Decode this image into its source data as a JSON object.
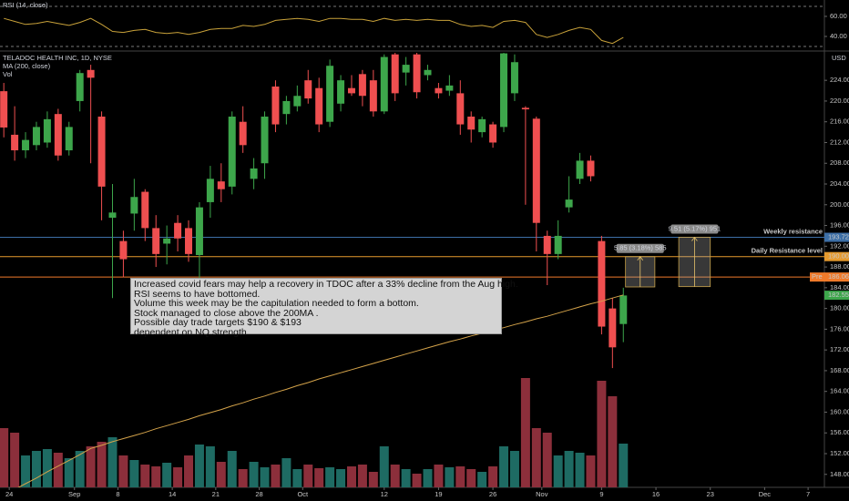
{
  "chart_data": {
    "type": "candlestick",
    "title": "TELADOC HEALTH INC, 1D, NYSE",
    "currency": "USD",
    "up_color": "#3da64b",
    "down_color": "#ef4f50",
    "open": [
      221.9,
      213.5,
      210.5,
      211.5,
      212,
      217.5,
      210.5,
      220,
      226,
      217,
      197.5,
      193,
      198.3,
      202.5,
      195.5,
      192.5,
      196.5,
      195.5,
      190.3,
      200.5,
      204.5,
      203.5,
      216,
      205,
      208,
      222.8,
      217.5,
      219,
      224,
      222.5,
      216,
      219.5,
      222.5,
      225.2,
      224,
      218,
      229,
      225.5,
      229,
      225,
      222.5,
      222,
      221.5,
      217,
      214,
      215.5,
      215,
      221.5,
      218.7,
      216.6,
      194,
      190.5,
      199.5,
      205,
      208.5,
      193,
      180,
      177
    ],
    "high": [
      223.5,
      219,
      214,
      216,
      218,
      218.5,
      216,
      226,
      227,
      218,
      204,
      195,
      205,
      203,
      198,
      196,
      198,
      197,
      200.5,
      207.5,
      208,
      218,
      219,
      209,
      218,
      224,
      221,
      223,
      226,
      224.5,
      228,
      225,
      225,
      226,
      226,
      229,
      229.3,
      228.5,
      229.3,
      227,
      223.5,
      225,
      224,
      218,
      217,
      216,
      229.3,
      229,
      219,
      217,
      195,
      197,
      205.5,
      210,
      209.5,
      194,
      182,
      184
    ],
    "low": [
      213,
      208.5,
      209,
      210.5,
      211,
      208.5,
      209.5,
      218,
      208,
      197,
      182,
      186,
      195,
      193,
      188,
      188.5,
      191,
      189,
      185.5,
      197.5,
      200.5,
      202,
      210,
      203,
      205,
      214,
      215.5,
      218,
      219.5,
      214,
      215,
      218,
      221,
      219,
      217,
      217.5,
      220,
      223,
      220.5,
      224,
      220.5,
      221,
      213.5,
      212,
      213,
      211,
      214,
      220,
      200,
      191,
      184.5,
      189.5,
      198.5,
      204,
      204.5,
      175,
      168.5,
      173.5
    ],
    "close": [
      214.9,
      210.5,
      212.5,
      215,
      216.5,
      209.5,
      215,
      225.4,
      224.5,
      203.5,
      198.5,
      189.5,
      201.5,
      195.5,
      190.5,
      193.5,
      193.5,
      190.5,
      199.5,
      205,
      203,
      217,
      211.5,
      207,
      217,
      215.5,
      220,
      221,
      220.5,
      215.5,
      226.8,
      224,
      221.5,
      221,
      218,
      228.5,
      221.5,
      227,
      221.7,
      226,
      221.5,
      223,
      215.5,
      214.5,
      216.5,
      212,
      229.2,
      227.5,
      218.4,
      196.5,
      190.5,
      194,
      201,
      208.5,
      205.5,
      176.5,
      172.5,
      182.5
    ],
    "xlim": [
      -0.35,
      75.5
    ],
    "xticks": [
      {
        "value": 0.5,
        "label": "24"
      },
      {
        "value": 6.5,
        "label": "Sep"
      },
      {
        "value": 10.5,
        "label": "8"
      },
      {
        "value": 15.5,
        "label": "14"
      },
      {
        "value": 19.5,
        "label": "21"
      },
      {
        "value": 23.5,
        "label": "28"
      },
      {
        "value": 27.5,
        "label": "Oct"
      },
      {
        "value": 35,
        "label": "12"
      },
      {
        "value": 40,
        "label": "19"
      },
      {
        "value": 45,
        "label": "26"
      },
      {
        "value": 49.5,
        "label": "Nov"
      },
      {
        "value": 55,
        "label": "9"
      },
      {
        "value": 60,
        "label": "16"
      },
      {
        "value": 65,
        "label": "23"
      },
      {
        "value": 70,
        "label": "Dec"
      },
      {
        "value": 74,
        "label": "7"
      }
    ],
    "ylim": [
      145.5,
      229.3
    ],
    "yticks": [
      {
        "value": 148,
        "label": "148.00"
      },
      {
        "value": 152,
        "label": "152.00"
      },
      {
        "value": 156,
        "label": "156.00"
      },
      {
        "value": 160,
        "label": "160.00"
      },
      {
        "value": 164,
        "label": "164.00"
      },
      {
        "value": 168,
        "label": "168.00"
      },
      {
        "value": 172,
        "label": "172.00"
      },
      {
        "value": 176,
        "label": "176.00"
      },
      {
        "value": 180,
        "label": "180.00"
      },
      {
        "value": 184,
        "label": "184.00"
      },
      {
        "value": 188,
        "label": "188.00"
      },
      {
        "value": 192,
        "label": "192.00"
      },
      {
        "value": 196,
        "label": "196.00"
      },
      {
        "value": 200,
        "label": "200.00"
      },
      {
        "value": 204,
        "label": "204.00"
      },
      {
        "value": 208,
        "label": "208.00"
      },
      {
        "value": 212,
        "label": "212.00"
      },
      {
        "value": 216,
        "label": "216.00"
      },
      {
        "value": 220,
        "label": "220.00"
      },
      {
        "value": 224,
        "label": "224.00"
      }
    ],
    "grid": false,
    "ma": {
      "name": "MA (200, close)",
      "color": "#d4a34a",
      "values": [
        144.0,
        145.1,
        146.2,
        147.3,
        148.5,
        149.6,
        150.7,
        151.8,
        153.0,
        153.6,
        154.3,
        154.9,
        155.5,
        156.1,
        156.8,
        157.4,
        158.0,
        158.6,
        159.3,
        159.9,
        160.5,
        161.2,
        161.8,
        162.5,
        163.1,
        163.8,
        164.4,
        165.1,
        165.7,
        166.4,
        167.0,
        167.6,
        168.2,
        168.8,
        169.4,
        170.0,
        170.6,
        171.2,
        171.8,
        172.4,
        173.0,
        173.6,
        174.1,
        174.7,
        175.2,
        175.8,
        176.3,
        176.9,
        177.4,
        178.0,
        178.5,
        179.1,
        179.7,
        180.3,
        180.9,
        181.4,
        182.0,
        182.6
      ]
    },
    "volume": {
      "name": "Vol",
      "up_color": "#1e6b63",
      "down_color": "#8c2f3b",
      "ylim": [
        0,
        150
      ],
      "values": [
        65,
        60,
        35,
        40,
        42,
        38,
        32,
        40,
        45,
        50,
        55,
        35,
        30,
        25,
        23,
        27,
        22,
        35,
        47,
        45,
        28,
        40,
        20,
        28,
        22,
        25,
        32,
        20,
        25,
        21,
        22,
        20,
        23,
        25,
        17,
        45,
        25,
        20,
        15,
        20,
        25,
        22,
        23,
        20,
        17,
        23,
        45,
        40,
        120,
        65,
        60,
        35,
        40,
        38,
        35,
        117,
        100,
        48
      ]
    },
    "rsi": {
      "name": "RSI (14, close)",
      "color": "#c9a23a",
      "ylim": [
        29.1,
        74.5
      ],
      "yticks": [
        {
          "value": 60,
          "label": "60.00"
        },
        {
          "value": 40,
          "label": "40.00"
        }
      ],
      "values": [
        58,
        55,
        52,
        53,
        55,
        53,
        51,
        54,
        58,
        52,
        45,
        44,
        46,
        47,
        44,
        43,
        44,
        42,
        44,
        47,
        48,
        48,
        51,
        50,
        52,
        56,
        57,
        58,
        57,
        55,
        58,
        58,
        57,
        57,
        55,
        58,
        56,
        57,
        56,
        57,
        56,
        56,
        52,
        50,
        51,
        49,
        55,
        56,
        54,
        42,
        39,
        42,
        46,
        49,
        47,
        36,
        33,
        39
      ]
    },
    "levels": [
      {
        "label": "Weekly resistance",
        "value": 193.72,
        "color": "#3d6fa6"
      },
      {
        "label": "Daily Resistance level",
        "value": 190,
        "value_label": "190.00",
        "color": "#e59a2e"
      },
      {
        "tag": "Pre",
        "value": 186.06,
        "color": "#f07a2a"
      }
    ],
    "last": {
      "value": 182.55,
      "color": "#3da64b"
    },
    "measurements": [
      {
        "x": [
          57.2,
          59.9
        ],
        "from": 184.15,
        "to": 190,
        "label": "5.85 (3.18%) 585"
      },
      {
        "x": [
          62.1,
          65.0
        ],
        "from": 184.21,
        "to": 193.72,
        "label": "9.51 (5.17%) 951"
      }
    ],
    "annotation": {
      "lines": [
        "Increased covid fears may help a recovery in TDOC  after a 33% decline from the Aug high.",
        "RSI seems to have bottomed.",
        "Volume this week may be the capitulation needed to form a bottom.",
        "Stock managed to close above the 200MA .",
        "Possible day trade targets $190 & $193",
        "dependent on NQ strength"
      ]
    }
  }
}
